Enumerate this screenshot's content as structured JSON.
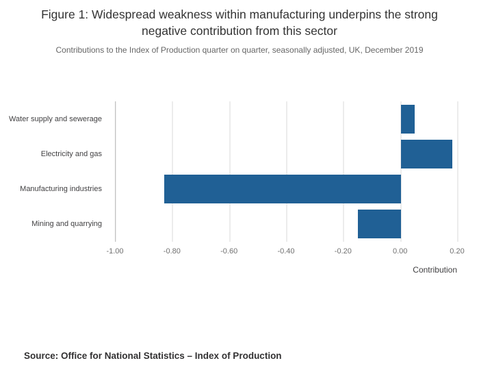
{
  "page": {
    "title": "Figure 1: Widespread weakness within manufacturing underpins the strong negative contribution from this sector",
    "subtitle": "Contributions to the Index of Production quarter on quarter, seasonally adjusted, UK, December 2019",
    "source": "Source: Office for National Statistics – Index of Production"
  },
  "colors": {
    "bar": "#206095",
    "gridline": "#d9d9d9",
    "axis_line": "#a9a9a9"
  },
  "chart_data": {
    "type": "bar",
    "orientation": "horizontal",
    "categories": [
      "Water supply and sewerage",
      "Electricity and gas",
      "Manufacturing industries",
      "Mining and quarrying"
    ],
    "values": [
      0.05,
      0.18,
      -0.83,
      -0.15
    ],
    "title": "Figure 1: Widespread weakness within manufacturing underpins the strong negative contribution from this sector",
    "subtitle": "Contributions to the Index of Production quarter on quarter, seasonally adjusted, UK, December 2019",
    "xlabel": "Contribution",
    "ylabel": "",
    "xlim": [
      -1.0,
      0.2
    ],
    "xticks": [
      -1.0,
      -0.8,
      -0.6,
      -0.4,
      -0.2,
      0.0,
      0.2
    ],
    "xtick_labels": [
      "-1.00",
      "-0.80",
      "-0.60",
      "-0.40",
      "-0.20",
      "0.00",
      "0.20"
    ],
    "grid": true,
    "legend": "none",
    "bar_color": "#206095"
  }
}
